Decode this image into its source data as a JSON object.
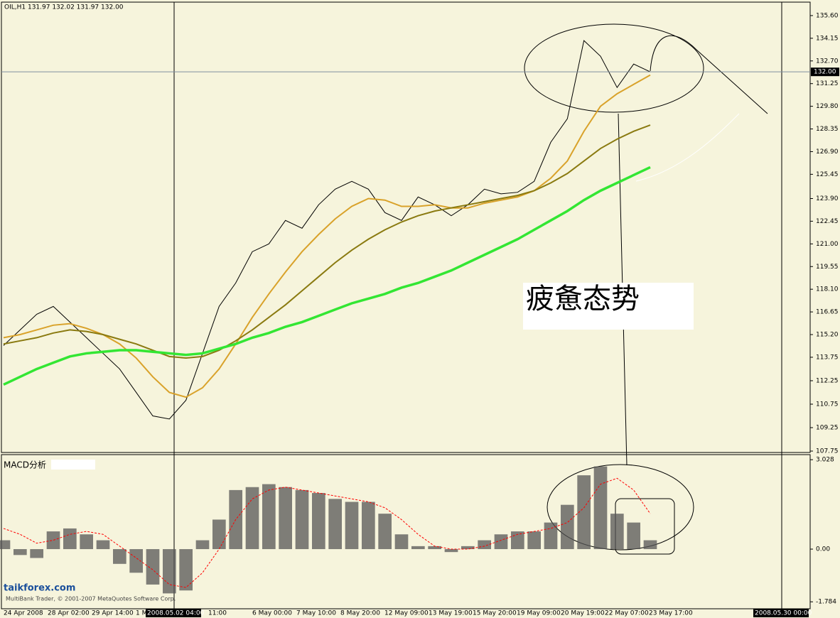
{
  "chart_data": [
    {
      "type": "line",
      "title": "OIL,H1  131.97 132.02 131.97 132.00",
      "ylim": [
        107.66,
        136.46
      ],
      "yticks": [
        {
          "value": 135.6,
          "label": "135.60"
        },
        134.15,
        {
          "value": 132.7,
          "label": "132.70"
        },
        131.25,
        {
          "value": 129.8,
          "label": "129.80"
        },
        128.35,
        {
          "value": 126.9,
          "label": "126.90"
        },
        125.45,
        {
          "value": 123.9,
          "label": "123.90"
        },
        122.45,
        {
          "value": 121,
          "label": "121.00"
        },
        119.55,
        {
          "value": 118.1,
          "label": "118.10"
        },
        116.65,
        {
          "value": 115.2,
          "label": "115.20"
        },
        113.75,
        112.25,
        110.75,
        109.25,
        107.75
      ],
      "current_price": {
        "value": 132,
        "label": "132.00"
      },
      "annotation": "疲惫态势",
      "series": [
        {
          "name": "price",
          "color": "#000000",
          "values": [
            114.5,
            115.5,
            116.5,
            117,
            116,
            115,
            114,
            113,
            111.5,
            110,
            109.8,
            111,
            114,
            117,
            118.5,
            120.5,
            121,
            122.5,
            122,
            123.5,
            124.5,
            125,
            124.5,
            123,
            122.5,
            124,
            123.5,
            122.8,
            123.5,
            124.5,
            124.2,
            124.3,
            125,
            127.5,
            129,
            134,
            133,
            131,
            132.5,
            132
          ]
        },
        {
          "name": "fast-ma",
          "color": "#d9a22a",
          "values": [
            115,
            115.2,
            115.5,
            115.8,
            115.9,
            115.6,
            115.2,
            114.6,
            113.7,
            112.5,
            111.5,
            111.2,
            111.8,
            113,
            114.6,
            116.3,
            117.8,
            119.2,
            120.5,
            121.6,
            122.6,
            123.4,
            123.9,
            123.8,
            123.4,
            123.4,
            123.5,
            123.3,
            123.3,
            123.6,
            123.8,
            124,
            124.4,
            125.2,
            126.3,
            128.2,
            129.8,
            130.6,
            131.2,
            131.8
          ]
        },
        {
          "name": "slow-ma",
          "color": "#8a7a10",
          "values": [
            114.6,
            114.8,
            115,
            115.3,
            115.5,
            115.4,
            115.2,
            114.9,
            114.6,
            114.2,
            113.8,
            113.7,
            113.8,
            114.2,
            114.8,
            115.5,
            116.3,
            117.1,
            118,
            118.9,
            119.8,
            120.6,
            121.3,
            121.9,
            122.4,
            122.8,
            123.1,
            123.3,
            123.5,
            123.7,
            123.9,
            124.1,
            124.4,
            124.9,
            125.5,
            126.3,
            127.1,
            127.7,
            128.2,
            128.6
          ]
        },
        {
          "name": "long-ma",
          "color": "#33e633",
          "values": [
            112,
            112.5,
            113,
            113.4,
            113.8,
            114,
            114.1,
            114.2,
            114.2,
            114.1,
            114,
            113.9,
            114,
            114.3,
            114.6,
            115,
            115.3,
            115.7,
            116,
            116.4,
            116.8,
            117.2,
            117.5,
            117.8,
            118.2,
            118.5,
            118.9,
            119.3,
            119.8,
            120.3,
            120.8,
            121.3,
            121.9,
            122.5,
            123.1,
            123.8,
            124.4,
            124.9,
            125.4,
            125.9
          ]
        }
      ],
      "x_axis_labels": [
        "24 Apr 2008",
        "28 Apr 02:00",
        "29 Apr 14:00",
        "1 M",
        "11:00",
        "6 May 00:00",
        "7 May 10:00",
        "8 May 20:00",
        "12 May 09:00",
        "13 May 19:00",
        "15 May 20:00",
        "19 May 09:00",
        "20 May 19:00",
        "22 May 07:00",
        "23 May 17:00"
      ],
      "cursor_labels": [
        "2008.05.02 04:00",
        "2008.05.30 00:00"
      ]
    },
    {
      "type": "bar",
      "title": "MACD分析",
      "ylim": [
        -2.02,
        3.2
      ],
      "yticks": [
        3.028,
        {
          "value": 0,
          "label": "0.00"
        },
        -1.784
      ],
      "values": [
        0.3,
        -0.2,
        -0.3,
        0.6,
        0.7,
        0.5,
        0.3,
        -0.5,
        -0.8,
        -1.2,
        -1.5,
        -1.4,
        0.3,
        1.0,
        2.0,
        2.1,
        2.2,
        2.1,
        2.0,
        1.9,
        1.7,
        1.6,
        1.6,
        1.2,
        0.5,
        0.1,
        0.1,
        -0.1,
        0.1,
        0.3,
        0.5,
        0.6,
        0.6,
        0.9,
        1.5,
        2.5,
        2.8,
        1.2,
        0.9,
        0.3
      ],
      "color": "#555555",
      "signal": {
        "color": "#ff0000",
        "values": [
          0.7,
          0.5,
          0.2,
          0.3,
          0.5,
          0.6,
          0.5,
          0.1,
          -0.3,
          -0.7,
          -1.2,
          -1.3,
          -0.8,
          0,
          1.0,
          1.7,
          2.0,
          2.1,
          2.0,
          1.9,
          1.8,
          1.7,
          1.6,
          1.4,
          1.0,
          0.5,
          0.1,
          0,
          0,
          0.1,
          0.3,
          0.5,
          0.6,
          0.7,
          0.9,
          1.4,
          2.2,
          2.4,
          2.0,
          1.2
        ]
      },
      "footer": "MultiBank Trader, © 2001-2007 MetaQuotes Software Corp.",
      "watermark": "taikforex.com"
    }
  ]
}
